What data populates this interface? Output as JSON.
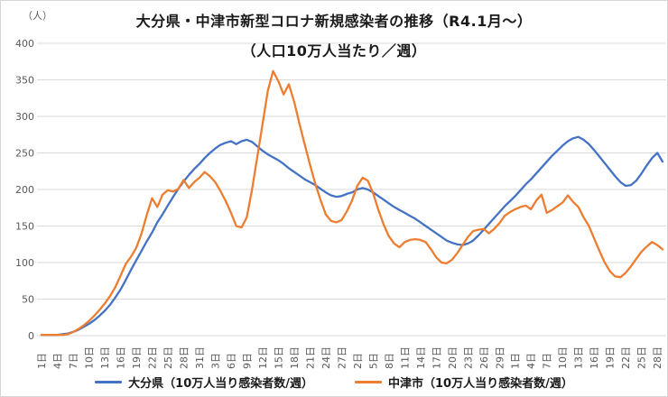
{
  "header": {
    "unit_label": "（人）",
    "title": "大分県・中津市新型コロナ新規感染者の推移（R4.1月～）",
    "subtitle": "（人口10万人当たり／週）"
  },
  "chart_data": {
    "type": "line",
    "title": "大分県・中津市新型コロナ新規感染者の推移（R4.1月～）",
    "subtitle": "（人口10万人当たり／週）",
    "y_unit_label": "（人）",
    "ylim": [
      0,
      400
    ],
    "y_ticks": [
      0,
      50,
      100,
      150,
      200,
      250,
      300,
      350,
      400
    ],
    "grid": "horizontal",
    "gridline_color": "#d9d9d9",
    "tick_label_color": "#595959",
    "legend_position": "bottom",
    "x_tick_step_points": 3,
    "x_note": "daily points; tick labels every 3 days (day-of-month, Jan-Apr)",
    "x_tick_labels": [
      "1日",
      "4日",
      "7日",
      "10日",
      "13日",
      "16日",
      "19日",
      "22日",
      "25日",
      "28日",
      "31日",
      "3日",
      "6日",
      "9日",
      "12日",
      "15日",
      "18日",
      "21日",
      "24日",
      "27日",
      "2日",
      "5日",
      "8日",
      "11日",
      "14日",
      "17日",
      "20日",
      "23日",
      "26日",
      "29日",
      "1日",
      "4日",
      "7日",
      "10日",
      "13日",
      "16日",
      "19日",
      "22日",
      "25日",
      "28日"
    ],
    "series": [
      {
        "name": "大分県（10万人当り感染者数/週）",
        "color": "#4472C4",
        "values": [
          1,
          1,
          1,
          1,
          2,
          3,
          5,
          8,
          12,
          16,
          21,
          27,
          34,
          42,
          52,
          63,
          76,
          90,
          103,
          116,
          129,
          141,
          155,
          166,
          178,
          190,
          201,
          211,
          220,
          228,
          235,
          243,
          250,
          256,
          261,
          264,
          266,
          262,
          266,
          268,
          265,
          259,
          253,
          248,
          244,
          240,
          235,
          229,
          224,
          219,
          214,
          210,
          206,
          201,
          196,
          192,
          190,
          191,
          194,
          196,
          200,
          202,
          200,
          196,
          191,
          186,
          181,
          176,
          172,
          168,
          164,
          160,
          155,
          150,
          145,
          140,
          135,
          130,
          127,
          125,
          124,
          126,
          130,
          137,
          145,
          153,
          161,
          169,
          177,
          184,
          191,
          199,
          207,
          214,
          222,
          230,
          238,
          246,
          253,
          260,
          266,
          270,
          272,
          268,
          262,
          254,
          245,
          236,
          227,
          218,
          210,
          205,
          206,
          212,
          222,
          233,
          243,
          250,
          238
        ]
      },
      {
        "name": "中津市（10万人当り感染者数/週）",
        "color": "#ED7D31",
        "values": [
          1,
          1,
          1,
          1,
          1,
          2,
          5,
          9,
          14,
          20,
          27,
          35,
          44,
          54,
          66,
          82,
          98,
          108,
          120,
          140,
          165,
          188,
          176,
          193,
          199,
          197,
          201,
          213,
          202,
          210,
          216,
          224,
          218,
          210,
          198,
          184,
          168,
          150,
          148,
          162,
          200,
          245,
          290,
          335,
          362,
          348,
          330,
          344,
          320,
          290,
          262,
          234,
          208,
          186,
          166,
          157,
          155,
          158,
          170,
          185,
          205,
          216,
          212,
          195,
          172,
          152,
          136,
          126,
          121,
          128,
          131,
          132,
          131,
          128,
          118,
          107,
          100,
          99,
          104,
          113,
          124,
          135,
          143,
          145,
          146,
          140,
          146,
          154,
          164,
          169,
          173,
          176,
          178,
          173,
          185,
          193,
          168,
          172,
          177,
          182,
          192,
          183,
          176,
          162,
          150,
          133,
          116,
          100,
          88,
          81,
          80,
          86,
          95,
          105,
          115,
          122,
          128,
          124,
          118
        ]
      }
    ]
  }
}
